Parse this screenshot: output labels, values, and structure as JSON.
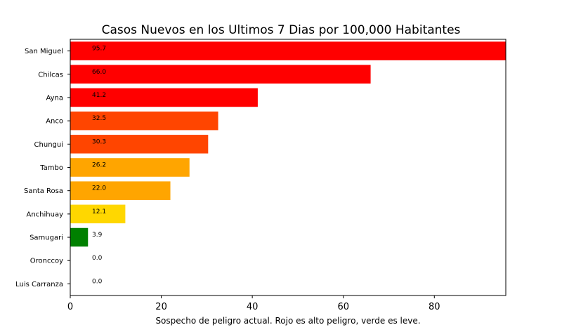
{
  "chart_data": {
    "type": "bar",
    "orientation": "horizontal",
    "title": "Casos Nuevos en los Ultimos 7 Dias por 100,000 Habitantes",
    "xlabel": "Sospecho de peligro actual. Rojo es alto peligro, verde es leve.",
    "ylabel": "",
    "categories": [
      "San Miguel",
      "Chilcas",
      "Ayna",
      "Anco",
      "Chungui",
      "Tambo",
      "Santa Rosa",
      "Anchihuay",
      "Samugari",
      "Oronccoy",
      "Luis Carranza"
    ],
    "values": [
      95.7,
      66.0,
      41.2,
      32.5,
      30.3,
      26.2,
      22.0,
      12.1,
      3.9,
      0.0,
      0.0
    ],
    "value_labels": [
      "95.7",
      "66.0",
      "41.2",
      "32.5",
      "30.3",
      "26.2",
      "22.0",
      "12.1",
      "3.9",
      "0.0",
      "0.0"
    ],
    "colors": [
      "#ff0000",
      "#ff0000",
      "#ff0000",
      "#ff4500",
      "#ff4500",
      "#ffa500",
      "#ffa500",
      "#ffd700",
      "#008000",
      "#008000",
      "#008000"
    ],
    "xlim": [
      0,
      95.7
    ],
    "xticks": [
      0,
      20,
      40,
      60,
      80
    ],
    "grid": false,
    "legend": "none"
  }
}
